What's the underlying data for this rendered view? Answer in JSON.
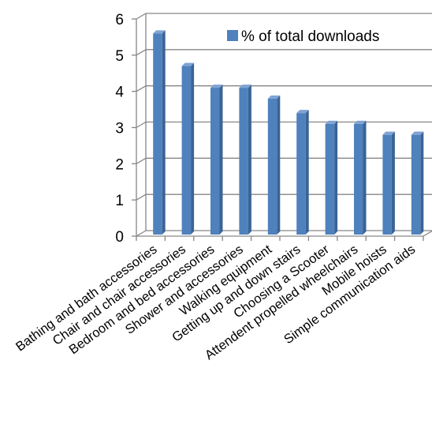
{
  "chart_data": {
    "type": "bar",
    "style": "3d-column",
    "categories": [
      "Bathing and bath accessories",
      "Chair and chair accessories",
      "Bedroom and bed accessories",
      "Shower and accessories",
      "Walking equipment",
      "Getting up and down stairs",
      "Choosing a Scooter",
      "Attendent propelled wheelchairs",
      "Mobile hoists",
      "Simple communication aids"
    ],
    "series": [
      {
        "name": "% of total downloads",
        "values": [
          5.6,
          4.7,
          4.1,
          4.1,
          3.8,
          3.4,
          3.1,
          3.1,
          2.8,
          2.8
        ]
      }
    ],
    "ylim": [
      0,
      6
    ],
    "yticks": [
      "0",
      "1",
      "2",
      "3",
      "4",
      "5",
      "6"
    ],
    "grid": true,
    "legend_position": "top-right",
    "colors": {
      "bar_front": "#4f81bd",
      "bar_side": "#3a6495",
      "bar_top": "#7fa3d4",
      "grid": "#868686"
    }
  }
}
